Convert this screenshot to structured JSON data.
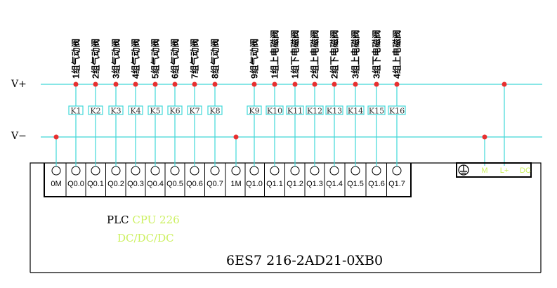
{
  "rails": {
    "v_plus": "V+",
    "v_minus": "V−"
  },
  "colors": {
    "wire": "#40d8d8",
    "node": "#e83030",
    "accent_text": "#ccf060",
    "line": "#000000"
  },
  "terminals": [
    {
      "label": "0M",
      "to": "v_minus"
    },
    {
      "label": "Q0.0",
      "to": "relay",
      "relay": "K1",
      "load": "1组气动阀"
    },
    {
      "label": "Q0.1",
      "to": "relay",
      "relay": "K2",
      "load": "2组气动阀"
    },
    {
      "label": "Q0.2",
      "to": "relay",
      "relay": "K3",
      "load": "3组气动阀"
    },
    {
      "label": "Q0.3",
      "to": "relay",
      "relay": "K4",
      "load": "4组气动阀"
    },
    {
      "label": "Q0.4",
      "to": "relay",
      "relay": "K5",
      "load": "5组气动阀"
    },
    {
      "label": "Q0.5",
      "to": "relay",
      "relay": "K6",
      "load": "6组气动阀"
    },
    {
      "label": "Q0.6",
      "to": "relay",
      "relay": "K7",
      "load": "7组气动阀"
    },
    {
      "label": "Q0.7",
      "to": "relay",
      "relay": "K8",
      "load": "8组气动阀"
    },
    {
      "label": "1M",
      "to": "v_minus"
    },
    {
      "label": "Q1.0",
      "to": "relay",
      "relay": "K9",
      "load": "9组气动阀"
    },
    {
      "label": "Q1.1",
      "to": "relay",
      "relay": "K10",
      "load": "1组上电磁阀"
    },
    {
      "label": "Q1.2",
      "to": "relay",
      "relay": "K11",
      "load": "1组下电磁阀"
    },
    {
      "label": "Q1.3",
      "to": "relay",
      "relay": "K12",
      "load": "2组上电磁阀"
    },
    {
      "label": "Q1.4",
      "to": "relay",
      "relay": "K13",
      "load": "2组下电磁阀"
    },
    {
      "label": "Q1.5",
      "to": "relay",
      "relay": "K14",
      "load": "3组上电磁阀"
    },
    {
      "label": "Q1.6",
      "to": "relay",
      "relay": "K15",
      "load": "3组下电磁阀"
    },
    {
      "label": "Q1.7",
      "to": "relay",
      "relay": "K16",
      "load": "4组上电磁阀"
    }
  ],
  "power": {
    "ground_icon": "ground-icon",
    "m": "M",
    "l_plus": "L+",
    "dc": "DC"
  },
  "plc": {
    "prefix": "PLC",
    "model": "CPU 226",
    "type": "DC/DC/DC",
    "order_number": "6ES7 216-2AD21-0XB0"
  }
}
